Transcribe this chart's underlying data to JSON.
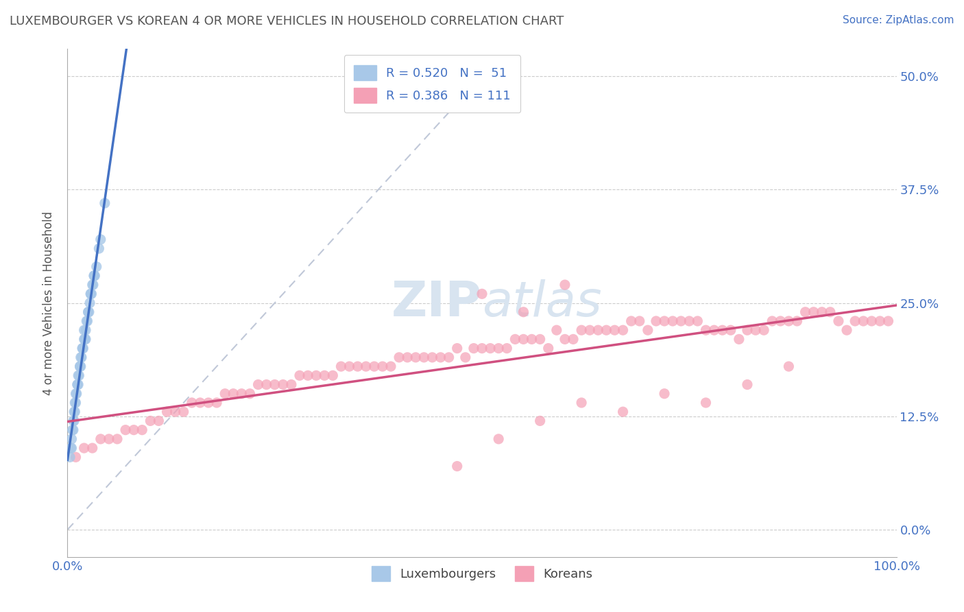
{
  "title": "LUXEMBOURGER VS KOREAN 4 OR MORE VEHICLES IN HOUSEHOLD CORRELATION CHART",
  "source_text": "Source: ZipAtlas.com",
  "ylabel": "4 or more Vehicles in Household",
  "xlim": [
    0,
    100
  ],
  "ylim": [
    -3,
    53
  ],
  "ytick_values": [
    0,
    12.5,
    25.0,
    37.5,
    50.0
  ],
  "ytick_labels": [
    "0.0%",
    "12.5%",
    "25.0%",
    "37.5%",
    "50.0%"
  ],
  "xtick_values": [
    0,
    100
  ],
  "xtick_labels": [
    "0.0%",
    "100.0%"
  ],
  "watermark_zip": "ZIP",
  "watermark_atlas": "atlas",
  "legend_r1": "R = 0.520",
  "legend_n1": "N =  51",
  "legend_r2": "R = 0.386",
  "legend_n2": "N = 111",
  "color_lux": "#A8C8E8",
  "color_lux_edge": "#7EB9E8",
  "color_korean": "#F4A0B5",
  "color_korean_edge": "#E87898",
  "color_lux_line": "#4472C4",
  "color_korean_line": "#D05080",
  "color_diag": "#C0C8D8",
  "background_color": "#FFFFFF",
  "lux_x": [
    0.3,
    0.4,
    0.5,
    0.6,
    0.7,
    0.8,
    0.9,
    1.0,
    1.1,
    1.2,
    1.3,
    1.4,
    1.5,
    1.6,
    1.7,
    1.8,
    1.9,
    2.0,
    2.1,
    2.2,
    2.3,
    2.4,
    2.5,
    2.6,
    2.7,
    2.8,
    2.9,
    3.0,
    3.1,
    3.2,
    3.3,
    3.5,
    3.8,
    4.0,
    4.5,
    0.5,
    0.8,
    1.0,
    1.2,
    1.5,
    1.8,
    2.0,
    2.2,
    2.5,
    2.8,
    3.2,
    1.6,
    0.9,
    2.1,
    1.3,
    0.7
  ],
  "lux_y": [
    8,
    9,
    10,
    11,
    11,
    12,
    13,
    14,
    15,
    16,
    16,
    17,
    18,
    18,
    19,
    20,
    20,
    21,
    21,
    22,
    23,
    23,
    24,
    24,
    25,
    26,
    26,
    27,
    27,
    28,
    28,
    29,
    31,
    32,
    36,
    9,
    13,
    15,
    16,
    18,
    20,
    22,
    21,
    24,
    26,
    28,
    19,
    14,
    21,
    17,
    12
  ],
  "korean_x": [
    1,
    2,
    3,
    4,
    5,
    6,
    7,
    8,
    9,
    10,
    11,
    12,
    13,
    14,
    15,
    16,
    17,
    18,
    19,
    20,
    21,
    22,
    23,
    24,
    25,
    26,
    27,
    28,
    29,
    30,
    31,
    32,
    33,
    34,
    35,
    36,
    37,
    38,
    39,
    40,
    41,
    42,
    43,
    44,
    45,
    46,
    47,
    48,
    49,
    50,
    51,
    52,
    53,
    54,
    55,
    56,
    57,
    58,
    59,
    60,
    61,
    62,
    63,
    64,
    65,
    66,
    67,
    68,
    69,
    70,
    71,
    72,
    73,
    74,
    75,
    76,
    77,
    78,
    79,
    80,
    81,
    82,
    83,
    84,
    85,
    86,
    87,
    88,
    89,
    90,
    91,
    92,
    93,
    94,
    95,
    96,
    97,
    98,
    99,
    50,
    55,
    60,
    47,
    52,
    57,
    62,
    67,
    72,
    77,
    82,
    87
  ],
  "korean_y": [
    8,
    9,
    9,
    10,
    10,
    10,
    11,
    11,
    11,
    12,
    12,
    13,
    13,
    13,
    14,
    14,
    14,
    14,
    15,
    15,
    15,
    15,
    16,
    16,
    16,
    16,
    16,
    17,
    17,
    17,
    17,
    17,
    18,
    18,
    18,
    18,
    18,
    18,
    18,
    19,
    19,
    19,
    19,
    19,
    19,
    19,
    20,
    19,
    20,
    20,
    20,
    20,
    20,
    21,
    21,
    21,
    21,
    20,
    22,
    21,
    21,
    22,
    22,
    22,
    22,
    22,
    22,
    23,
    23,
    22,
    23,
    23,
    23,
    23,
    23,
    23,
    22,
    22,
    22,
    22,
    21,
    22,
    22,
    22,
    23,
    23,
    23,
    23,
    24,
    24,
    24,
    24,
    23,
    22,
    23,
    23,
    23,
    23,
    23,
    26,
    24,
    27,
    7,
    10,
    12,
    14,
    13,
    15,
    14,
    16,
    18
  ]
}
